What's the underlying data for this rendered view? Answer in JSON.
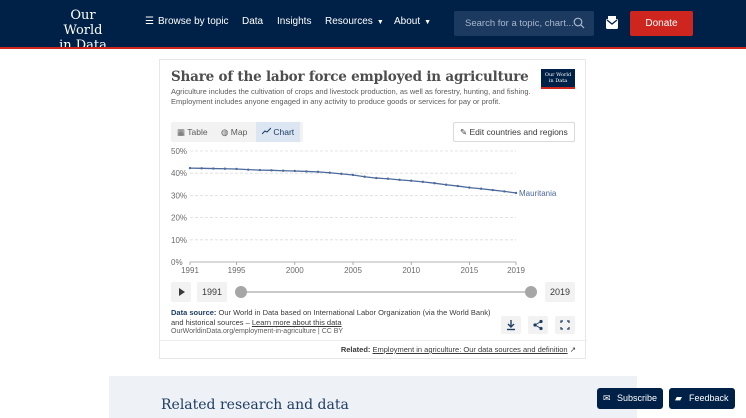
{
  "nav": {
    "logo_line1": "Our World",
    "logo_line2": "in Data",
    "browse_label": "Browse by topic",
    "data_label": "Data",
    "insights_label": "Insights",
    "resources_label": "Resources",
    "about_label": "About",
    "search_placeholder": "Search for a topic, chart...",
    "donate_label": "Donate"
  },
  "chart_card": {
    "title": "Share of the labor force employed in agriculture",
    "badge_line1": "Our World",
    "badge_line2": "in Data",
    "subtitle": "Agriculture includes the cultivation of crops and livestock production, as well as forestry, hunting, and fishing. Employment includes anyone engaged in any activity to produce goods or services for pay or profit.",
    "tabs": [
      {
        "label": "Table",
        "icon": "table-icon",
        "active": false
      },
      {
        "label": "Map",
        "icon": "globe-icon",
        "active": false
      },
      {
        "label": "Chart",
        "icon": "line-chart-icon",
        "active": true
      }
    ],
    "edit_label": "Edit countries and regions",
    "timeline_start": "1991",
    "timeline_end": "2019",
    "source_prefix": "Data source:",
    "source_text": "Our World in Data based on International Labor Organization (via the World Bank) and historical sources –",
    "source_link": "Learn more about this data",
    "url_line": "OurWorldinData.org/employment-in-agriculture | CC BY",
    "related_prefix": "Related:",
    "related_link": "Employment in agriculture: Our data sources and definition"
  },
  "chart_data": {
    "type": "line",
    "title": "Share of the labor force employed in agriculture",
    "xlabel": "",
    "ylabel": "",
    "x": [
      1991,
      1992,
      1993,
      1994,
      1995,
      1996,
      1997,
      1998,
      1999,
      2000,
      2001,
      2002,
      2003,
      2004,
      2005,
      2006,
      2007,
      2008,
      2009,
      2010,
      2011,
      2012,
      2013,
      2014,
      2015,
      2016,
      2017,
      2018,
      2019
    ],
    "series": [
      {
        "name": "Mauritania",
        "color": "#4c6a9c",
        "values": [
          42.3,
          42.2,
          42.1,
          42.0,
          41.9,
          41.6,
          41.4,
          41.3,
          41.1,
          41.0,
          40.8,
          40.6,
          40.2,
          39.7,
          39.2,
          38.4,
          37.8,
          37.5,
          37.0,
          36.6,
          36.1,
          35.5,
          34.8,
          34.2,
          33.5,
          33.0,
          32.4,
          31.8,
          31.1
        ]
      }
    ],
    "ylim": [
      0,
      50
    ],
    "yticks": [
      "0%",
      "10%",
      "20%",
      "30%",
      "40%",
      "50%"
    ],
    "xticks": [
      "1991",
      "1995",
      "2000",
      "2005",
      "2010",
      "2015",
      "2019"
    ],
    "grid": true
  },
  "footer": {
    "related_heading": "Related research and data",
    "subscribe_label": "Subscribe",
    "feedback_label": "Feedback"
  },
  "colors": {
    "navy": "#002147",
    "accent_red": "#ce261e",
    "series_blue": "#4c6a9c"
  }
}
